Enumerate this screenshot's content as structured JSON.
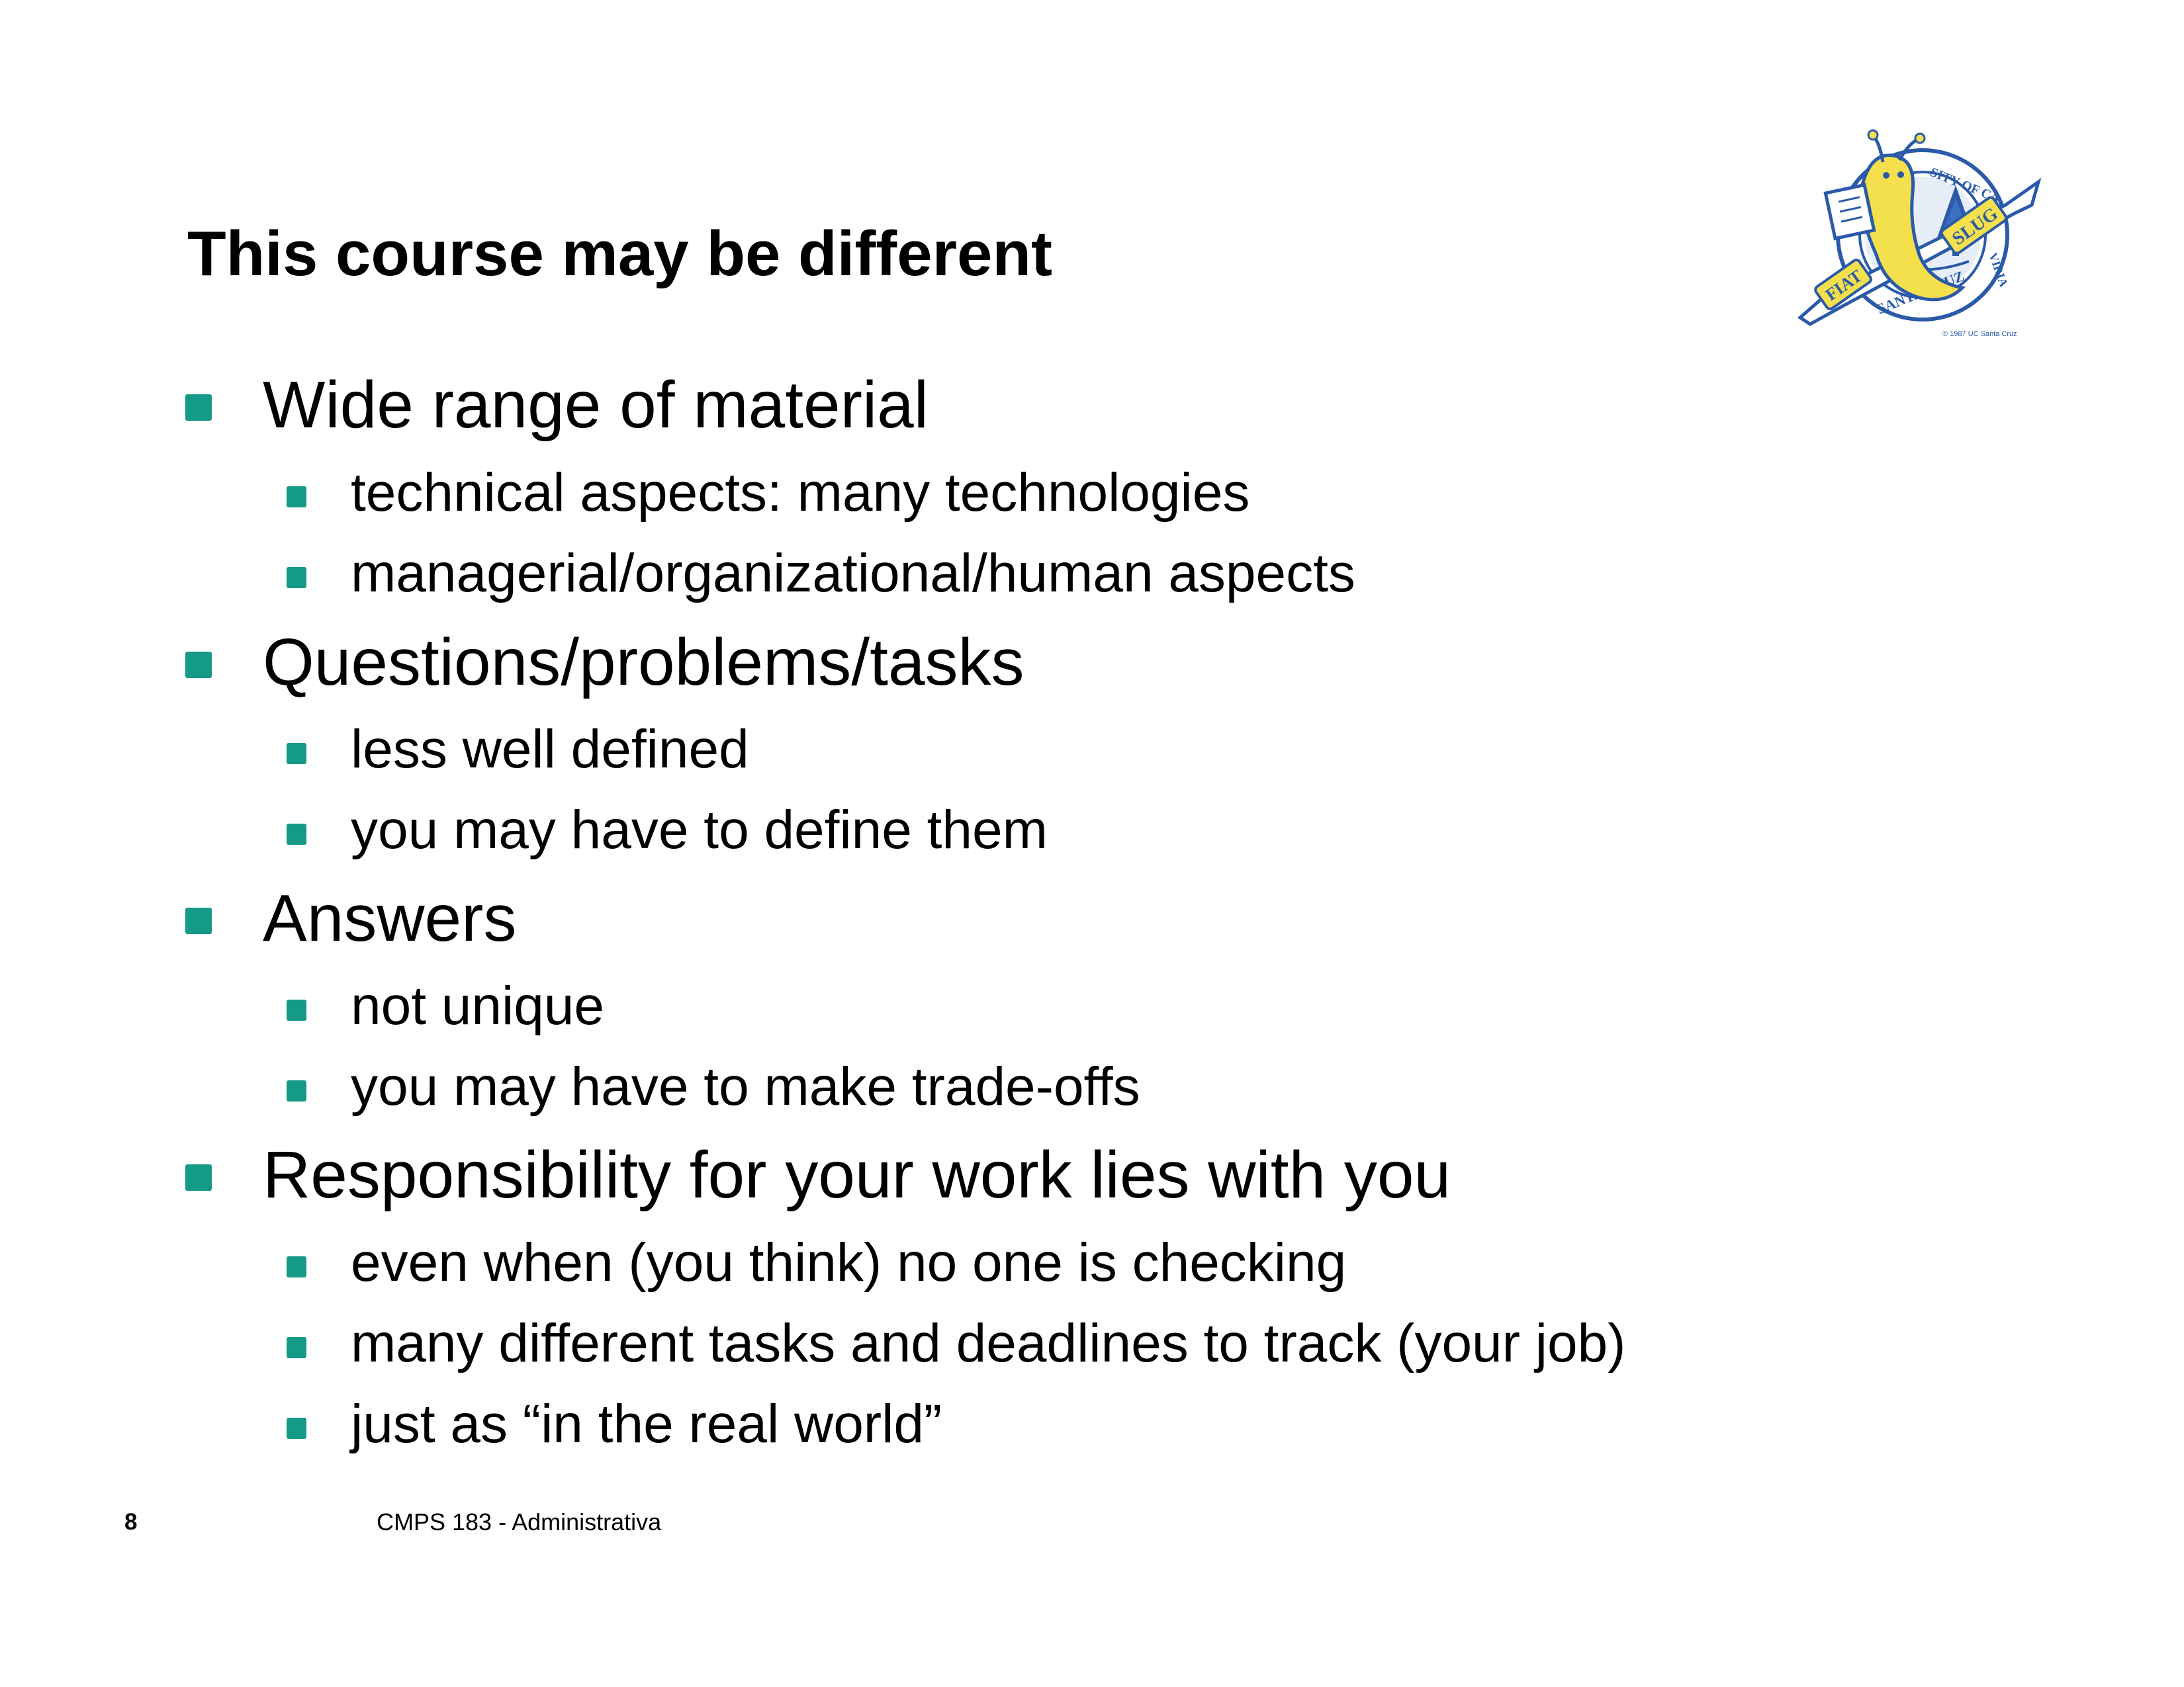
{
  "slide": {
    "title": "This course may be different",
    "bullets": [
      {
        "level": 1,
        "text": "Wide range of material"
      },
      {
        "level": 2,
        "text": "technical aspects: many technologies"
      },
      {
        "level": 2,
        "text": "managerial/organizational/human aspects"
      },
      {
        "level": 1,
        "text": "Questions/problems/tasks"
      },
      {
        "level": 2,
        "text": "less well defined"
      },
      {
        "level": 2,
        "text": "you may have to define them"
      },
      {
        "level": 1,
        "text": "Answers"
      },
      {
        "level": 2,
        "text": "not unique"
      },
      {
        "level": 2,
        "text": "you may have to make trade-offs"
      },
      {
        "level": 1,
        "text": "Responsibility for your work lies with you"
      },
      {
        "level": 2,
        "text": "even when (you think) no one is checking"
      },
      {
        "level": 2,
        "text": "many different tasks and deadlines to track (your job)"
      },
      {
        "level": 2,
        "text": "just as “in the real world”"
      }
    ],
    "footer": {
      "page_number": "8",
      "course": "CMPS 183 - Administrativa"
    },
    "logo": {
      "banner_left": "FIAT",
      "banner_right": "SLUG",
      "ring_top": "SITY OF CA",
      "ring_bottom": "SANTA CRUZ",
      "ring_right": "VIRIA",
      "copyright": "© 1987 UC Santa Cruz"
    }
  },
  "colors": {
    "bullet": "#159a87",
    "text": "#000000",
    "logo_yellow": "#f4e04d",
    "logo_blue": "#2a5aa8"
  }
}
